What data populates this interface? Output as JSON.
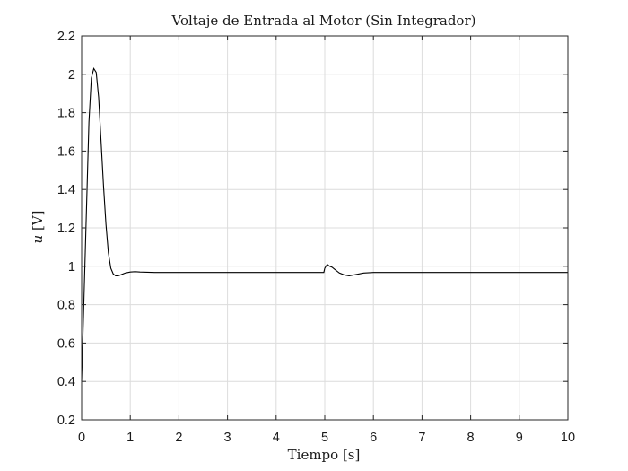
{
  "chart_data": {
    "type": "line",
    "title": "Voltaje de Entrada al Motor (Sin Integrador)",
    "xlabel": "Tiempo [s]",
    "ylabel_var": "u",
    "ylabel_unit": " [V]",
    "xlim": [
      0,
      10
    ],
    "ylim": [
      0.2,
      2.2
    ],
    "xticks": [
      0,
      1,
      2,
      3,
      4,
      5,
      6,
      7,
      8,
      9,
      10
    ],
    "yticks": [
      0.2,
      0.4,
      0.6,
      0.8,
      1,
      1.2,
      1.4,
      1.6,
      1.8,
      2,
      2.2
    ],
    "grid": true,
    "line_color": "#000000",
    "series": [
      {
        "x": [
          0,
          0.05,
          0.1,
          0.15,
          0.2,
          0.25,
          0.3,
          0.35,
          0.4,
          0.45,
          0.5,
          0.55,
          0.6,
          0.65,
          0.7,
          0.75,
          0.8,
          0.9,
          1.0,
          1.1,
          1.2,
          1.5,
          2,
          3,
          4,
          4.98,
          5.0,
          5.05,
          5.1,
          5.15,
          5.2,
          5.3,
          5.4,
          5.5,
          5.6,
          5.8,
          6.0,
          6.5,
          7,
          8,
          9,
          10
        ],
        "y": [
          0.4,
          0.85,
          1.3,
          1.75,
          1.98,
          2.03,
          2.01,
          1.88,
          1.65,
          1.42,
          1.22,
          1.07,
          0.99,
          0.96,
          0.95,
          0.95,
          0.955,
          0.965,
          0.97,
          0.972,
          0.97,
          0.968,
          0.968,
          0.968,
          0.968,
          0.968,
          0.99,
          1.01,
          1.0,
          0.995,
          0.985,
          0.965,
          0.955,
          0.95,
          0.955,
          0.965,
          0.968,
          0.968,
          0.968,
          0.968,
          0.968,
          0.968
        ]
      }
    ]
  }
}
